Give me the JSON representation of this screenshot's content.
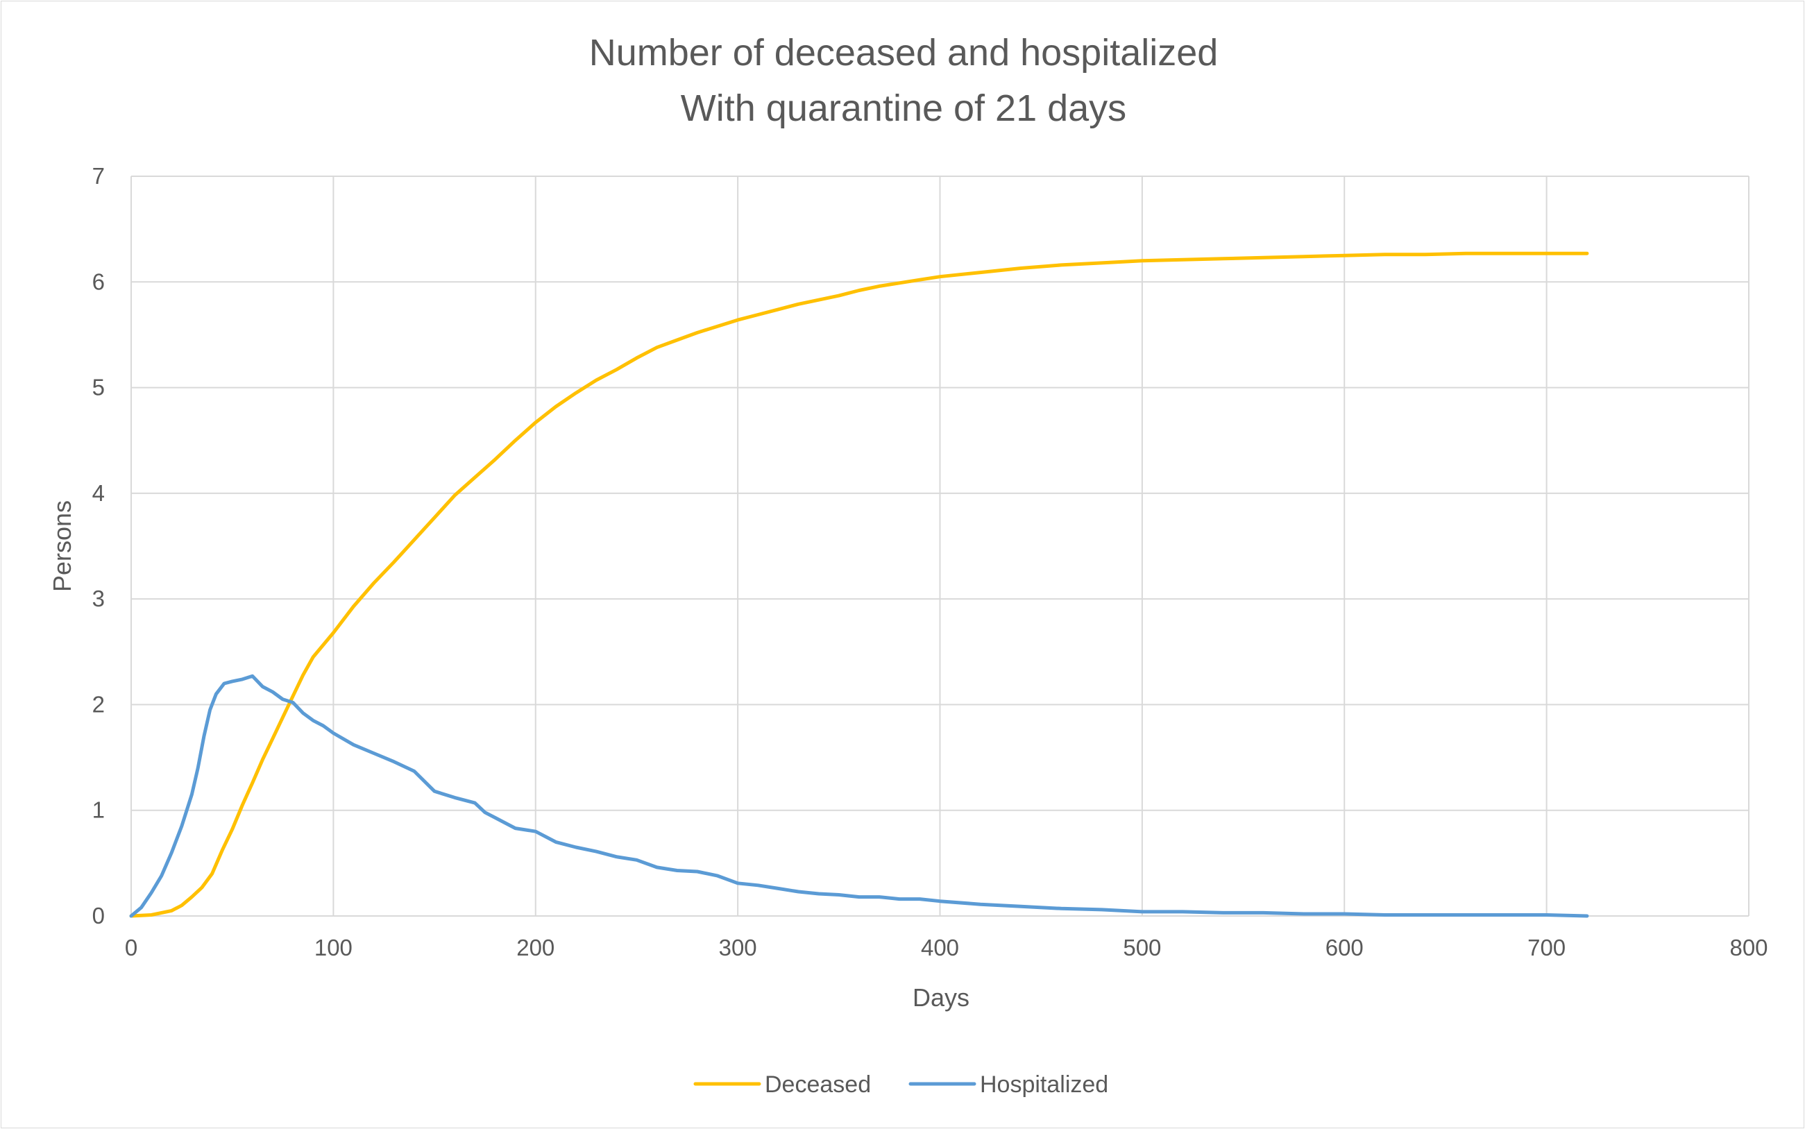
{
  "chart_data": {
    "type": "line",
    "title": "Number of deceased and hospitalized",
    "subtitle": "With quarantine of 21 days",
    "xlabel": "Days",
    "ylabel": "Persons",
    "xlim": [
      0,
      800
    ],
    "ylim": [
      0,
      7
    ],
    "x_ticks": [
      0,
      100,
      200,
      300,
      400,
      500,
      600,
      700,
      800
    ],
    "y_ticks": [
      0,
      1,
      2,
      3,
      4,
      5,
      6,
      7
    ],
    "grid": true,
    "legend_position": "bottom",
    "series": [
      {
        "name": "Deceased",
        "color": "#FFC000",
        "points": [
          [
            0,
            0
          ],
          [
            10,
            0.01
          ],
          [
            20,
            0.05
          ],
          [
            25,
            0.1
          ],
          [
            30,
            0.18
          ],
          [
            35,
            0.27
          ],
          [
            40,
            0.4
          ],
          [
            45,
            0.62
          ],
          [
            50,
            0.82
          ],
          [
            55,
            1.05
          ],
          [
            60,
            1.26
          ],
          [
            65,
            1.48
          ],
          [
            70,
            1.68
          ],
          [
            75,
            1.88
          ],
          [
            80,
            2.08
          ],
          [
            85,
            2.28
          ],
          [
            90,
            2.45
          ],
          [
            100,
            2.68
          ],
          [
            110,
            2.93
          ],
          [
            120,
            3.15
          ],
          [
            130,
            3.35
          ],
          [
            140,
            3.56
          ],
          [
            150,
            3.77
          ],
          [
            160,
            3.98
          ],
          [
            170,
            4.15
          ],
          [
            180,
            4.32
          ],
          [
            190,
            4.5
          ],
          [
            200,
            4.67
          ],
          [
            210,
            4.82
          ],
          [
            220,
            4.95
          ],
          [
            230,
            5.07
          ],
          [
            240,
            5.17
          ],
          [
            250,
            5.28
          ],
          [
            260,
            5.38
          ],
          [
            270,
            5.45
          ],
          [
            280,
            5.52
          ],
          [
            290,
            5.58
          ],
          [
            300,
            5.64
          ],
          [
            310,
            5.69
          ],
          [
            320,
            5.74
          ],
          [
            330,
            5.79
          ],
          [
            340,
            5.83
          ],
          [
            350,
            5.87
          ],
          [
            360,
            5.92
          ],
          [
            370,
            5.96
          ],
          [
            380,
            5.99
          ],
          [
            390,
            6.02
          ],
          [
            400,
            6.05
          ],
          [
            420,
            6.09
          ],
          [
            440,
            6.13
          ],
          [
            460,
            6.16
          ],
          [
            480,
            6.18
          ],
          [
            500,
            6.2
          ],
          [
            520,
            6.21
          ],
          [
            540,
            6.22
          ],
          [
            560,
            6.23
          ],
          [
            580,
            6.24
          ],
          [
            600,
            6.25
          ],
          [
            620,
            6.26
          ],
          [
            640,
            6.26
          ],
          [
            660,
            6.27
          ],
          [
            680,
            6.27
          ],
          [
            700,
            6.27
          ],
          [
            720,
            6.27
          ]
        ]
      },
      {
        "name": "Hospitalized",
        "color": "#5B9BD5",
        "points": [
          [
            0,
            0
          ],
          [
            5,
            0.08
          ],
          [
            10,
            0.22
          ],
          [
            15,
            0.38
          ],
          [
            20,
            0.6
          ],
          [
            25,
            0.85
          ],
          [
            30,
            1.15
          ],
          [
            33,
            1.4
          ],
          [
            36,
            1.7
          ],
          [
            39,
            1.95
          ],
          [
            42,
            2.1
          ],
          [
            46,
            2.2
          ],
          [
            50,
            2.22
          ],
          [
            55,
            2.24
          ],
          [
            60,
            2.27
          ],
          [
            65,
            2.17
          ],
          [
            70,
            2.12
          ],
          [
            75,
            2.05
          ],
          [
            80,
            2.02
          ],
          [
            85,
            1.92
          ],
          [
            90,
            1.85
          ],
          [
            95,
            1.8
          ],
          [
            100,
            1.73
          ],
          [
            110,
            1.62
          ],
          [
            120,
            1.54
          ],
          [
            130,
            1.46
          ],
          [
            140,
            1.37
          ],
          [
            150,
            1.18
          ],
          [
            160,
            1.12
          ],
          [
            170,
            1.07
          ],
          [
            175,
            0.98
          ],
          [
            180,
            0.93
          ],
          [
            190,
            0.83
          ],
          [
            200,
            0.8
          ],
          [
            210,
            0.7
          ],
          [
            220,
            0.65
          ],
          [
            230,
            0.61
          ],
          [
            240,
            0.56
          ],
          [
            250,
            0.53
          ],
          [
            260,
            0.46
          ],
          [
            270,
            0.43
          ],
          [
            280,
            0.42
          ],
          [
            290,
            0.38
          ],
          [
            300,
            0.31
          ],
          [
            310,
            0.29
          ],
          [
            320,
            0.26
          ],
          [
            330,
            0.23
          ],
          [
            340,
            0.21
          ],
          [
            350,
            0.2
          ],
          [
            360,
            0.18
          ],
          [
            370,
            0.18
          ],
          [
            380,
            0.16
          ],
          [
            390,
            0.16
          ],
          [
            400,
            0.14
          ],
          [
            420,
            0.11
          ],
          [
            440,
            0.09
          ],
          [
            460,
            0.07
          ],
          [
            480,
            0.06
          ],
          [
            500,
            0.04
          ],
          [
            520,
            0.04
          ],
          [
            540,
            0.03
          ],
          [
            560,
            0.03
          ],
          [
            580,
            0.02
          ],
          [
            600,
            0.02
          ],
          [
            620,
            0.01
          ],
          [
            640,
            0.01
          ],
          [
            660,
            0.01
          ],
          [
            680,
            0.01
          ],
          [
            700,
            0.01
          ],
          [
            720,
            0.0
          ]
        ]
      }
    ]
  }
}
